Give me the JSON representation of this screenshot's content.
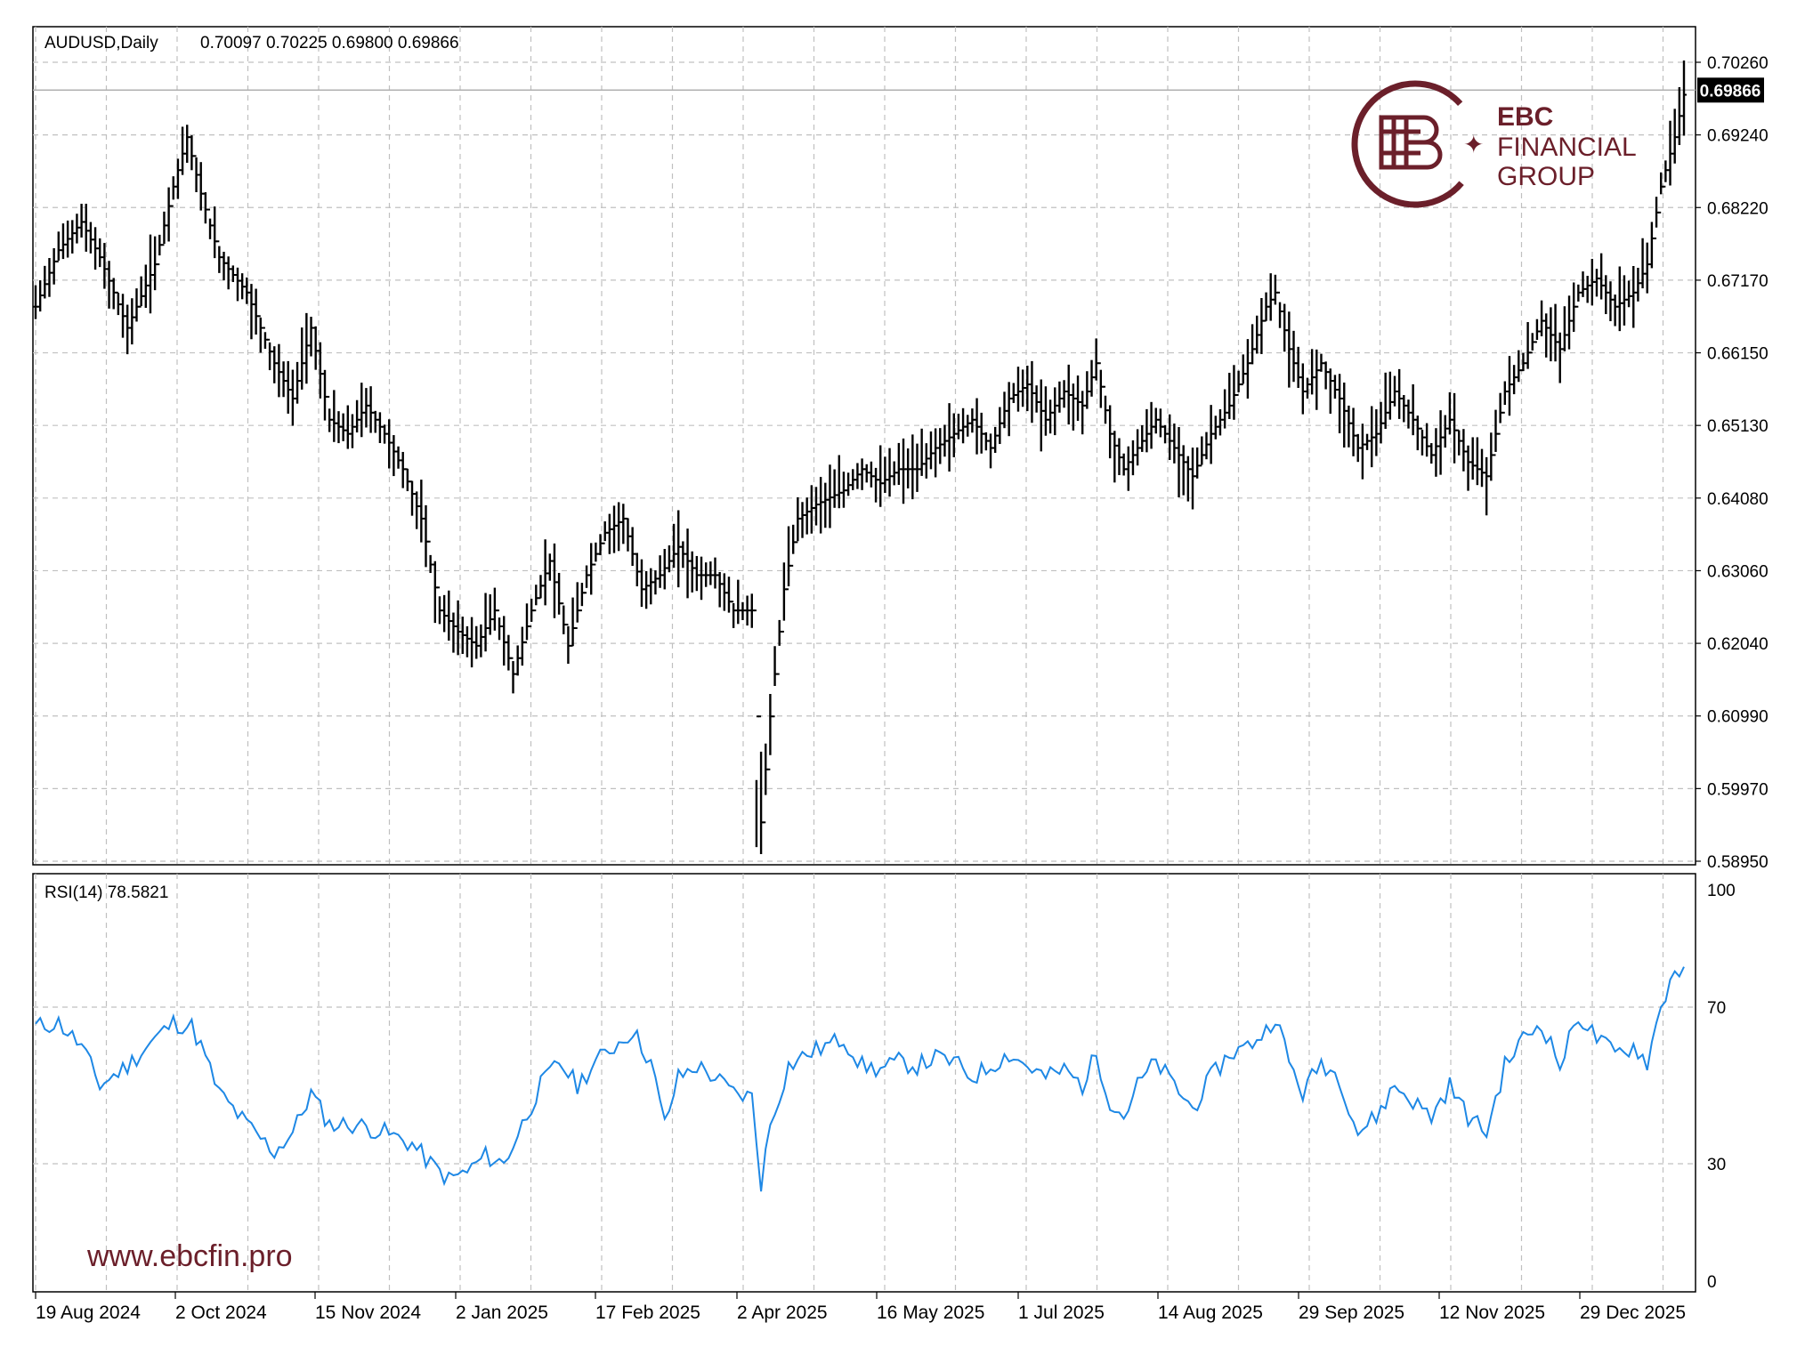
{
  "header": {
    "symbol": "AUDUSD,Daily",
    "ohlc": "0.70097 0.70225 0.69800 0.69866"
  },
  "indicator": {
    "label": "RSI(14) 78.5821"
  },
  "brand": {
    "line1": "EBC",
    "line2": "FINANCIAL",
    "line3": "GROUP",
    "url": "www.ebcfin.pro",
    "color": "#6b1f2a"
  },
  "current_price_label": "0.69866",
  "colors": {
    "bars": "#000000",
    "rsi": "#1e88e5",
    "grid": "#c0c0c0",
    "price_line": "#b0b0b0",
    "price_label_bg": "#000000"
  },
  "chart_data": [
    {
      "type": "ohlc",
      "instrument": "AUDUSD",
      "timeframe": "Daily",
      "x_ticks": [
        "19 Aug 2024",
        "2 Oct 2024",
        "15 Nov 2024",
        "2 Jan 2025",
        "17 Feb 2025",
        "2 Apr 2025",
        "16 May 2025",
        "1 Jul 2025",
        "14 Aug 2025",
        "29 Sep 2025",
        "12 Nov 2025",
        "29 Dec 2025"
      ],
      "y_ticks": [
        "0.70260",
        "0.69240",
        "0.68220",
        "0.67170",
        "0.66150",
        "0.65130",
        "0.64080",
        "0.63060",
        "0.62040",
        "0.60990",
        "0.59970",
        "0.58950"
      ],
      "ylim": [
        0.5895,
        0.7026
      ],
      "last_price": 0.69866,
      "anchors": [
        {
          "i": 0,
          "p": 0.668
        },
        {
          "i": 5,
          "p": 0.676
        },
        {
          "i": 10,
          "p": 0.68
        },
        {
          "i": 14,
          "p": 0.675
        },
        {
          "i": 20,
          "p": 0.665
        },
        {
          "i": 26,
          "p": 0.674
        },
        {
          "i": 30,
          "p": 0.685
        },
        {
          "i": 33,
          "p": 0.692
        },
        {
          "i": 36,
          "p": 0.684
        },
        {
          "i": 40,
          "p": 0.675
        },
        {
          "i": 46,
          "p": 0.67
        },
        {
          "i": 52,
          "p": 0.66
        },
        {
          "i": 56,
          "p": 0.655
        },
        {
          "i": 60,
          "p": 0.665
        },
        {
          "i": 64,
          "p": 0.652
        },
        {
          "i": 68,
          "p": 0.65
        },
        {
          "i": 72,
          "p": 0.654
        },
        {
          "i": 76,
          "p": 0.65
        },
        {
          "i": 80,
          "p": 0.645
        },
        {
          "i": 84,
          "p": 0.638
        },
        {
          "i": 88,
          "p": 0.625
        },
        {
          "i": 92,
          "p": 0.622
        },
        {
          "i": 96,
          "p": 0.62
        },
        {
          "i": 100,
          "p": 0.625
        },
        {
          "i": 104,
          "p": 0.616
        },
        {
          "i": 108,
          "p": 0.625
        },
        {
          "i": 112,
          "p": 0.632
        },
        {
          "i": 116,
          "p": 0.62
        },
        {
          "i": 120,
          "p": 0.63
        },
        {
          "i": 124,
          "p": 0.636
        },
        {
          "i": 128,
          "p": 0.638
        },
        {
          "i": 132,
          "p": 0.628
        },
        {
          "i": 136,
          "p": 0.63
        },
        {
          "i": 140,
          "p": 0.634
        },
        {
          "i": 144,
          "p": 0.63
        },
        {
          "i": 148,
          "p": 0.63
        },
        {
          "i": 152,
          "p": 0.625
        },
        {
          "i": 156,
          "p": 0.625
        },
        {
          "i": 158,
          "p": 0.595
        },
        {
          "i": 160,
          "p": 0.61
        },
        {
          "i": 163,
          "p": 0.628
        },
        {
          "i": 166,
          "p": 0.638
        },
        {
          "i": 170,
          "p": 0.64
        },
        {
          "i": 176,
          "p": 0.642
        },
        {
          "i": 180,
          "p": 0.645
        },
        {
          "i": 184,
          "p": 0.643
        },
        {
          "i": 188,
          "p": 0.645
        },
        {
          "i": 192,
          "p": 0.645
        },
        {
          "i": 196,
          "p": 0.648
        },
        {
          "i": 200,
          "p": 0.65
        },
        {
          "i": 204,
          "p": 0.652
        },
        {
          "i": 208,
          "p": 0.648
        },
        {
          "i": 212,
          "p": 0.655
        },
        {
          "i": 216,
          "p": 0.657
        },
        {
          "i": 220,
          "p": 0.652
        },
        {
          "i": 224,
          "p": 0.656
        },
        {
          "i": 228,
          "p": 0.654
        },
        {
          "i": 231,
          "p": 0.66
        },
        {
          "i": 234,
          "p": 0.65
        },
        {
          "i": 237,
          "p": 0.645
        },
        {
          "i": 240,
          "p": 0.648
        },
        {
          "i": 244,
          "p": 0.652
        },
        {
          "i": 248,
          "p": 0.648
        },
        {
          "i": 252,
          "p": 0.644
        },
        {
          "i": 256,
          "p": 0.65
        },
        {
          "i": 260,
          "p": 0.654
        },
        {
          "i": 264,
          "p": 0.66
        },
        {
          "i": 268,
          "p": 0.668
        },
        {
          "i": 270,
          "p": 0.67
        },
        {
          "i": 273,
          "p": 0.662
        },
        {
          "i": 276,
          "p": 0.656
        },
        {
          "i": 280,
          "p": 0.66
        },
        {
          "i": 284,
          "p": 0.655
        },
        {
          "i": 288,
          "p": 0.648
        },
        {
          "i": 292,
          "p": 0.65
        },
        {
          "i": 296,
          "p": 0.656
        },
        {
          "i": 300,
          "p": 0.652
        },
        {
          "i": 304,
          "p": 0.647
        },
        {
          "i": 308,
          "p": 0.652
        },
        {
          "i": 312,
          "p": 0.646
        },
        {
          "i": 316,
          "p": 0.644
        },
        {
          "i": 320,
          "p": 0.656
        },
        {
          "i": 324,
          "p": 0.66
        },
        {
          "i": 328,
          "p": 0.666
        },
        {
          "i": 332,
          "p": 0.662
        },
        {
          "i": 336,
          "p": 0.67
        },
        {
          "i": 340,
          "p": 0.672
        },
        {
          "i": 344,
          "p": 0.668
        },
        {
          "i": 348,
          "p": 0.67
        },
        {
          "i": 351,
          "p": 0.674
        },
        {
          "i": 354,
          "p": 0.685
        },
        {
          "i": 357,
          "p": 0.692
        },
        {
          "i": 359,
          "p": 0.698
        }
      ]
    },
    {
      "type": "line",
      "series": [
        {
          "name": "RSI(14)",
          "last": 78.5821
        }
      ],
      "y_ticks": [
        "100",
        "70",
        "30",
        "0"
      ],
      "ylim": [
        0,
        100
      ],
      "anchors": [
        {
          "i": 0,
          "v": 65
        },
        {
          "i": 5,
          "v": 66
        },
        {
          "i": 10,
          "v": 60
        },
        {
          "i": 14,
          "v": 50
        },
        {
          "i": 20,
          "v": 55
        },
        {
          "i": 26,
          "v": 62
        },
        {
          "i": 30,
          "v": 66
        },
        {
          "i": 34,
          "v": 65
        },
        {
          "i": 36,
          "v": 60
        },
        {
          "i": 40,
          "v": 48
        },
        {
          "i": 46,
          "v": 40
        },
        {
          "i": 52,
          "v": 33
        },
        {
          "i": 56,
          "v": 38
        },
        {
          "i": 60,
          "v": 48
        },
        {
          "i": 64,
          "v": 40
        },
        {
          "i": 70,
          "v": 40
        },
        {
          "i": 76,
          "v": 38
        },
        {
          "i": 82,
          "v": 35
        },
        {
          "i": 86,
          "v": 30
        },
        {
          "i": 90,
          "v": 26
        },
        {
          "i": 94,
          "v": 28
        },
        {
          "i": 98,
          "v": 32
        },
        {
          "i": 102,
          "v": 30
        },
        {
          "i": 106,
          "v": 40
        },
        {
          "i": 110,
          "v": 50
        },
        {
          "i": 114,
          "v": 56
        },
        {
          "i": 118,
          "v": 50
        },
        {
          "i": 122,
          "v": 56
        },
        {
          "i": 126,
          "v": 60
        },
        {
          "i": 130,
          "v": 64
        },
        {
          "i": 134,
          "v": 56
        },
        {
          "i": 137,
          "v": 40
        },
        {
          "i": 140,
          "v": 52
        },
        {
          "i": 144,
          "v": 55
        },
        {
          "i": 148,
          "v": 52
        },
        {
          "i": 152,
          "v": 48
        },
        {
          "i": 156,
          "v": 47
        },
        {
          "i": 158,
          "v": 25
        },
        {
          "i": 160,
          "v": 40
        },
        {
          "i": 164,
          "v": 55
        },
        {
          "i": 168,
          "v": 58
        },
        {
          "i": 172,
          "v": 60
        },
        {
          "i": 176,
          "v": 62
        },
        {
          "i": 180,
          "v": 55
        },
        {
          "i": 184,
          "v": 54
        },
        {
          "i": 188,
          "v": 56
        },
        {
          "i": 192,
          "v": 55
        },
        {
          "i": 196,
          "v": 57
        },
        {
          "i": 200,
          "v": 56
        },
        {
          "i": 204,
          "v": 52
        },
        {
          "i": 208,
          "v": 55
        },
        {
          "i": 212,
          "v": 58
        },
        {
          "i": 216,
          "v": 55
        },
        {
          "i": 220,
          "v": 52
        },
        {
          "i": 224,
          "v": 54
        },
        {
          "i": 228,
          "v": 50
        },
        {
          "i": 231,
          "v": 58
        },
        {
          "i": 234,
          "v": 46
        },
        {
          "i": 237,
          "v": 42
        },
        {
          "i": 240,
          "v": 50
        },
        {
          "i": 244,
          "v": 56
        },
        {
          "i": 248,
          "v": 50
        },
        {
          "i": 252,
          "v": 44
        },
        {
          "i": 256,
          "v": 52
        },
        {
          "i": 260,
          "v": 58
        },
        {
          "i": 264,
          "v": 60
        },
        {
          "i": 268,
          "v": 64
        },
        {
          "i": 270,
          "v": 68
        },
        {
          "i": 273,
          "v": 56
        },
        {
          "i": 276,
          "v": 48
        },
        {
          "i": 280,
          "v": 56
        },
        {
          "i": 284,
          "v": 52
        },
        {
          "i": 288,
          "v": 38
        },
        {
          "i": 292,
          "v": 42
        },
        {
          "i": 296,
          "v": 50
        },
        {
          "i": 300,
          "v": 46
        },
        {
          "i": 304,
          "v": 42
        },
        {
          "i": 308,
          "v": 50
        },
        {
          "i": 312,
          "v": 42
        },
        {
          "i": 316,
          "v": 38
        },
        {
          "i": 320,
          "v": 55
        },
        {
          "i": 324,
          "v": 62
        },
        {
          "i": 328,
          "v": 66
        },
        {
          "i": 332,
          "v": 55
        },
        {
          "i": 336,
          "v": 68
        },
        {
          "i": 340,
          "v": 62
        },
        {
          "i": 344,
          "v": 58
        },
        {
          "i": 348,
          "v": 60
        },
        {
          "i": 351,
          "v": 56
        },
        {
          "i": 354,
          "v": 70
        },
        {
          "i": 357,
          "v": 80
        },
        {
          "i": 359,
          "v": 78.58
        }
      ]
    }
  ]
}
